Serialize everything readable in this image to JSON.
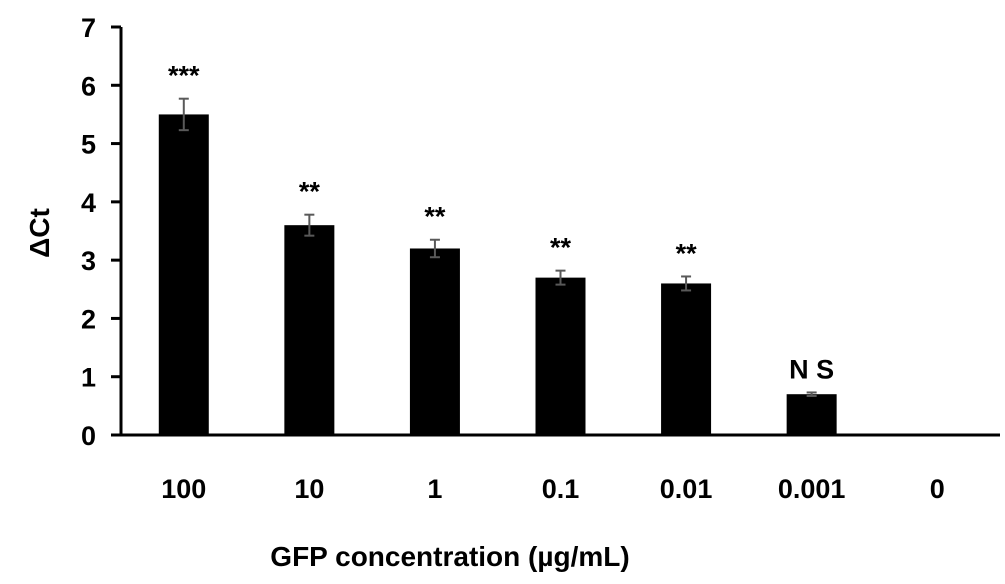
{
  "chart_data": {
    "type": "bar",
    "title": "",
    "xlabel": "GFP concentration (µg/mL)",
    "ylabel": "ΔCt",
    "categories": [
      "100",
      "10",
      "1",
      "0.1",
      "0.01",
      "0.001",
      "0"
    ],
    "values": [
      5.5,
      3.6,
      3.2,
      2.7,
      2.6,
      0.7,
      0
    ],
    "errors": [
      0.27,
      0.18,
      0.15,
      0.12,
      0.12,
      0.03,
      0
    ],
    "annotations": [
      "***",
      "**",
      "**",
      "**",
      "**",
      "N S",
      ""
    ],
    "ylim": [
      0,
      7
    ],
    "yticks": [
      0,
      1,
      2,
      3,
      4,
      5,
      6,
      7
    ],
    "grid": false,
    "bar_color": "#000000",
    "error_bar_color": "#595959"
  }
}
